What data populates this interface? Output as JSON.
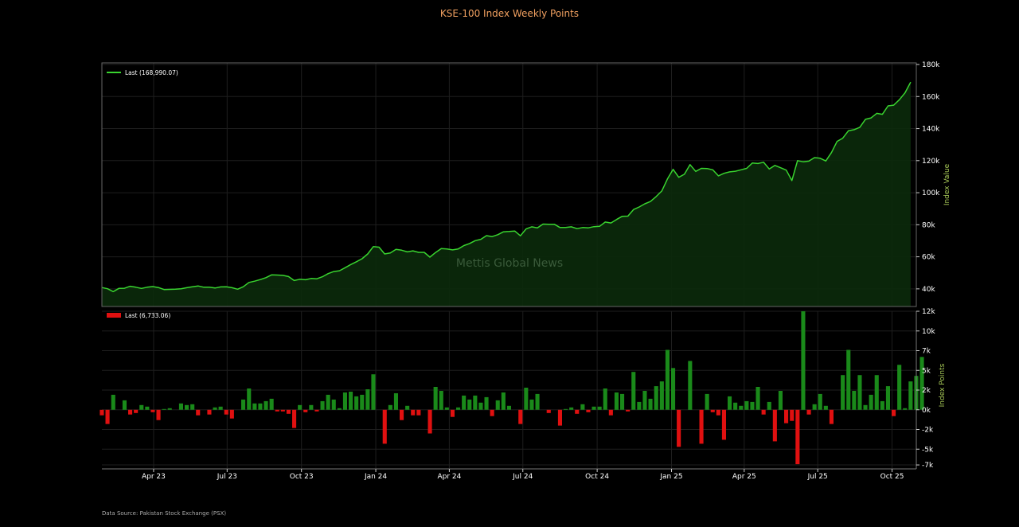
{
  "title": "KSE-100 Index Weekly Points",
  "source": "Data Source: Pakistan Stock Exchange (PSX)",
  "watermark": "Mettis Global News",
  "colors": {
    "line": "#39d42f",
    "up": "#1a8a1a",
    "down": "#e01010",
    "title": "#f0a060"
  },
  "chart_data": [
    {
      "type": "area",
      "ylabel": "Index Value",
      "legend": "Last (168,990.07)",
      "legend_position": "top-left",
      "ylim": [
        29000,
        181000
      ],
      "yticks": [
        40000,
        60000,
        80000,
        100000,
        120000,
        140000,
        160000,
        180000
      ],
      "ytick_labels": [
        "40k",
        "60k",
        "80k",
        "100k",
        "120k",
        "140k",
        "160k",
        "180k"
      ],
      "x_range": [
        "2023-01-27",
        "2025-10-31"
      ],
      "xticks": [
        "2023-04-01",
        "2023-07-01",
        "2023-10-01",
        "2024-01-01",
        "2024-04-01",
        "2024-07-01",
        "2024-10-01",
        "2025-01-01",
        "2025-04-01",
        "2025-07-01",
        "2025-10-01"
      ],
      "xtick_labels": [
        "Apr 23",
        "Jul 23",
        "Oct 23",
        "Jan 24",
        "Apr 24",
        "Jul 24",
        "Oct 24",
        "Jan 25",
        "Apr 25",
        "Jul 25",
        "Oct 25"
      ],
      "grid": true,
      "series": [
        {
          "name": "Last",
          "start": "2023-01-27",
          "step_days": 7,
          "values": [
            40800,
            40100,
            38300,
            40300,
            40400,
            41600,
            41000,
            40300,
            41000,
            41400,
            40800,
            39600,
            39700,
            39800,
            40100,
            40700,
            41300,
            41800,
            41000,
            41000,
            40500,
            41200,
            41300,
            40700,
            39800,
            41300,
            44000,
            44800,
            45800,
            47000,
            48700,
            48600,
            48400,
            47700,
            45200,
            46000,
            45700,
            46500,
            46300,
            47600,
            49500,
            50800,
            51300,
            53200,
            55200,
            56900,
            58800,
            61800,
            66400,
            66000,
            61800,
            62400,
            64600,
            64100,
            63100,
            63700,
            62800,
            62800,
            59800,
            62700,
            65100,
            64900,
            64300,
            64900,
            67000,
            68300,
            70100,
            70900,
            73200,
            72600,
            73800,
            75600,
            75800,
            76100,
            73100,
            77400,
            78700,
            78100,
            80400,
            80300,
            80300,
            78300,
            78300,
            78700,
            77600,
            78300,
            78100,
            78800,
            79000,
            81700,
            81100,
            83300,
            85300,
            85400,
            89500,
            91100,
            93100,
            94500,
            97600,
            101100,
            108600,
            114600,
            109600,
            111500,
            117500,
            113300,
            115200,
            115100,
            114300,
            110500,
            112100,
            113000,
            113400,
            114300,
            115200,
            118500,
            118200,
            119000,
            114800,
            117000,
            115600,
            114100,
            107600,
            120000,
            119300,
            119700,
            121900,
            121500,
            119800,
            125000,
            132000,
            134000,
            138700,
            139300,
            140800,
            145800,
            146700,
            149500,
            148900,
            154200,
            154600,
            158000,
            162300,
            169000
          ]
        }
      ]
    },
    {
      "type": "bar",
      "ylabel": "Index Points",
      "legend": "Last (6,733.06)",
      "legend_position": "top-left",
      "ylim": [
        -7500,
        12500
      ],
      "yticks": [
        -7000,
        -5000,
        -2500,
        0,
        2500,
        5000,
        7500,
        10000,
        12500
      ],
      "ytick_labels": [
        "-7k",
        "-5k",
        "-2k",
        "0k",
        "2k",
        "5k",
        "7k",
        "10k",
        "12k"
      ],
      "grid": true,
      "series": [
        {
          "name": "Last",
          "start": "2023-01-27",
          "step_days": 7,
          "values": [
            -700,
            -1800,
            1900,
            0,
            1200,
            -600,
            -400,
            600,
            400,
            -300,
            -1300,
            100,
            200,
            0,
            800,
            600,
            700,
            -700,
            0,
            -600,
            300,
            400,
            -600,
            -1100,
            0,
            1300,
            2700,
            800,
            800,
            1100,
            1400,
            -200,
            -200,
            -500,
            -2300,
            600,
            -300,
            600,
            -200,
            1100,
            1900,
            1300,
            200,
            2200,
            2300,
            1700,
            1900,
            2600,
            4500,
            0,
            -4300,
            600,
            2100,
            -1300,
            500,
            -700,
            -700,
            0,
            -3000,
            2900,
            2400,
            300,
            -900,
            300,
            1800,
            1300,
            1800,
            900,
            1600,
            -800,
            1200,
            2200,
            500,
            0,
            -1800,
            2800,
            1300,
            2000,
            0,
            -400,
            0,
            -2000,
            100,
            300,
            -500,
            700,
            -300,
            400,
            400,
            2700,
            -700,
            2200,
            2000,
            -200,
            4800,
            1000,
            2400,
            1400,
            3000,
            3600,
            7600,
            5300,
            -4700,
            0,
            6200,
            0,
            -4300,
            2000,
            -300,
            -700,
            -3800,
            1700,
            900,
            500,
            1100,
            1000,
            2900,
            -600,
            1000,
            -4000,
            2400,
            -1700,
            -1400,
            -6900,
            12500,
            -600,
            700,
            2000,
            500,
            -1800,
            0,
            4400,
            7600,
            2400,
            4400,
            600,
            1900,
            4400,
            1100,
            3000,
            -800,
            5700,
            200,
            3600,
            4300,
            6700
          ]
        }
      ]
    }
  ]
}
